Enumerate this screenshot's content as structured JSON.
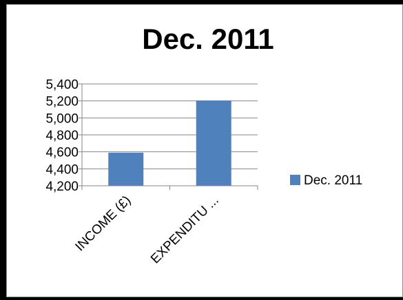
{
  "chart_data": {
    "type": "bar",
    "title": "Dec. 2011",
    "categories": [
      "INCOME (£)",
      "EXPENDITU ..."
    ],
    "series": [
      {
        "name": "Dec. 2011",
        "values": [
          4590,
          5205
        ],
        "color": "#4f81bd"
      }
    ],
    "yticks": [
      "5,400",
      "5,200",
      "5,000",
      "4,800",
      "4,600",
      "4,400",
      "4,200"
    ],
    "ylim": [
      4200,
      5400
    ],
    "xlabel": "",
    "ylabel": "",
    "grid": true,
    "legend": "right",
    "colors": {
      "bar": "#4f81bd",
      "grid": "#868686",
      "axis": "#868686",
      "background": "#000000",
      "plot_area": "#ffffff"
    }
  }
}
